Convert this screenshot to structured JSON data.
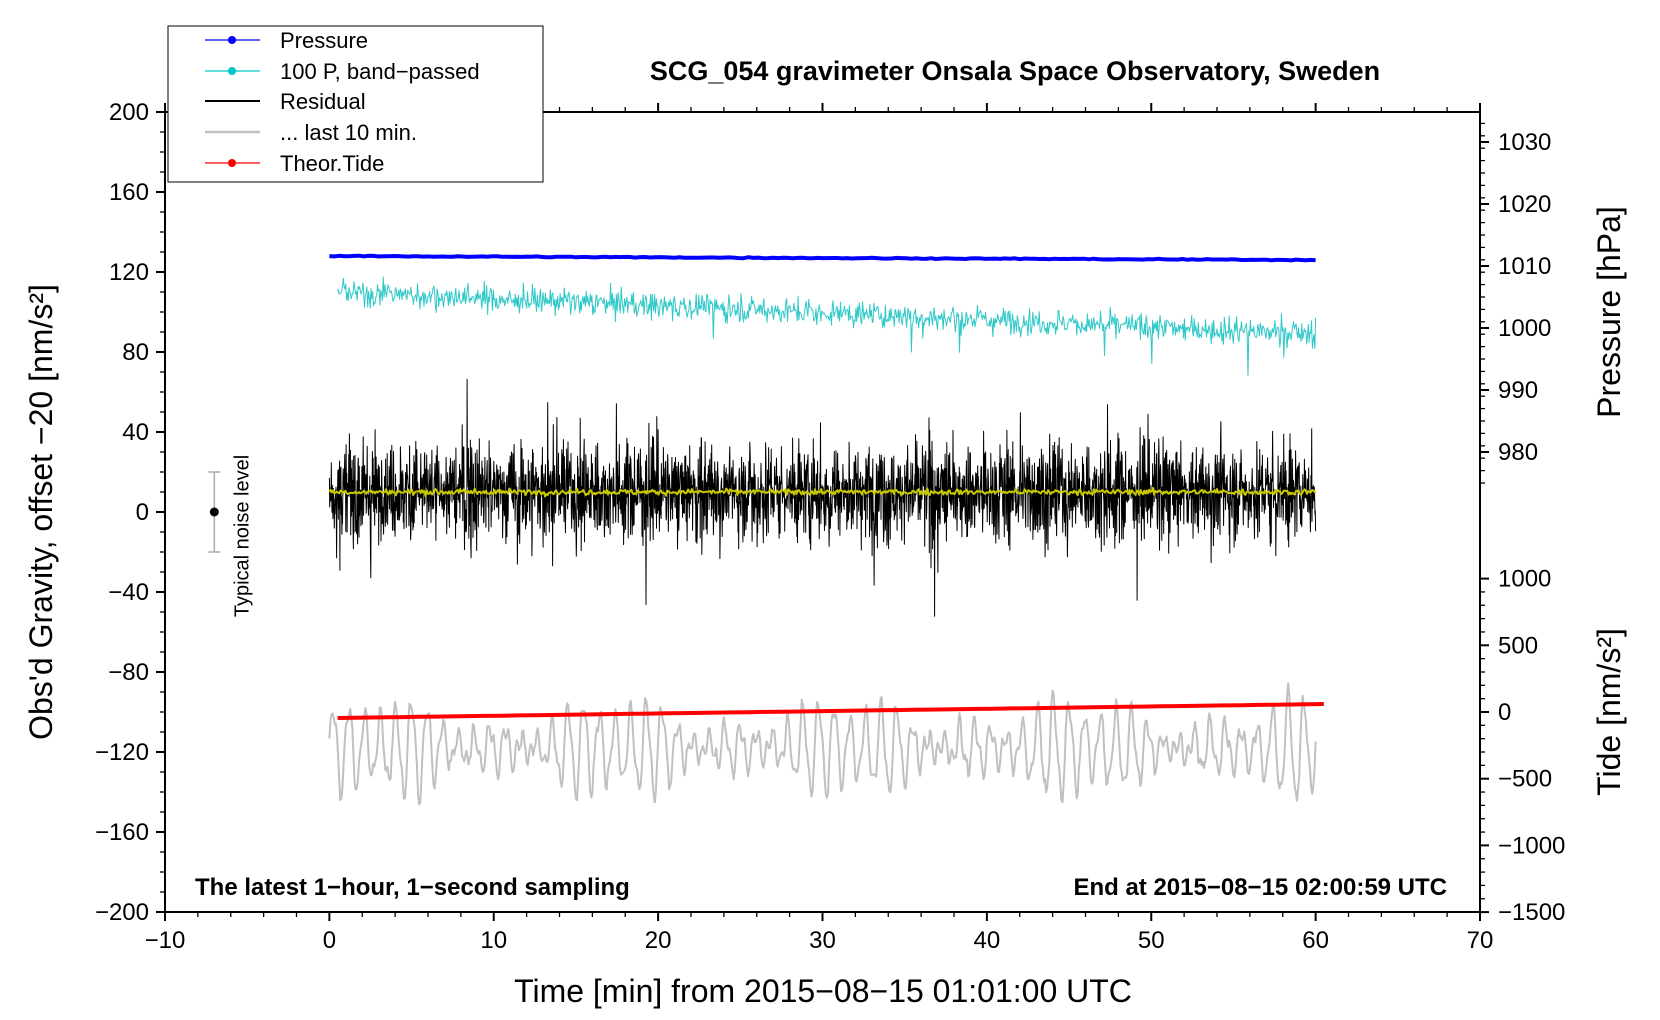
{
  "chart_data": {
    "type": "line",
    "title": "SCG_054 gravimeter Onsala Space Observatory, Sweden",
    "xlabel": "Time [min] from 2015−08−15 01:01:00 UTC",
    "ylabel_left": "Obs'd Gravity, offset −20 [nm/s²]",
    "ylabel_right_top": "Pressure [hPa]",
    "ylabel_right_bottom": "Tide [nm/s²]",
    "xlim": [
      -10,
      70
    ],
    "ylim_left": [
      -200,
      200
    ],
    "x_ticks": [
      -10,
      0,
      10,
      20,
      30,
      40,
      50,
      60,
      70
    ],
    "x_tick_labels": [
      "−10",
      "0",
      "10",
      "20",
      "30",
      "40",
      "50",
      "60",
      "70"
    ],
    "y_ticks_left": [
      200,
      160,
      120,
      80,
      40,
      0,
      -40,
      -80,
      -120,
      -160,
      -200
    ],
    "y_tick_labels_left": [
      "200",
      "160",
      "120",
      "80",
      "40",
      "0",
      "−40",
      "−80",
      "−120",
      "−160",
      "−200"
    ],
    "pressure_axis": {
      "ticks": [
        1030,
        1020,
        1010,
        1000,
        990,
        980
      ],
      "tick_labels": [
        "1030",
        "1020",
        "1010",
        "1000",
        "990",
        "980"
      ],
      "left_equivalent_of_1000": 92,
      "left_units_per_hPa": 3.1
    },
    "tide_axis": {
      "ticks": [
        1000,
        500,
        0,
        -500,
        -1000,
        -1500
      ],
      "tick_labels": [
        "1000",
        "500",
        "0",
        "−500",
        "−1000",
        "−1500"
      ],
      "left_equivalent_of_0": -100,
      "left_units_per_nms2": 0.0667
    },
    "legend": [
      {
        "label": "Pressure",
        "color": "#0000ff",
        "marker": true
      },
      {
        "label": "100 P, band−passed",
        "color": "#00c8c8",
        "marker": true
      },
      {
        "label": "Residual",
        "color": "#000000",
        "marker": false
      },
      {
        "label": "... last 10 min.",
        "color": "#c0c0c0",
        "marker": false
      },
      {
        "label": "Theor.Tide",
        "color": "#ff0000",
        "marker": true
      }
    ],
    "noise_bar": {
      "label": "Typical noise level",
      "x": -7,
      "y_center": 0,
      "y_low": -20,
      "y_high": 20
    },
    "footer_left": "The latest 1−hour, 1−second sampling",
    "footer_right": "End at 2015−08−15 02:00:59 UTC",
    "series": [
      {
        "name": "Pressure",
        "color": "#0000ff",
        "x_start": 0,
        "x_end": 60,
        "y_start": 128,
        "y_end": 126,
        "unit": "left-axis"
      },
      {
        "name": "100 P, band−passed",
        "color": "#30c8c8",
        "x_start": 0.5,
        "x_end": 60,
        "y_start": 110,
        "y_end": 89,
        "amplitude": 6,
        "unit": "left-axis"
      },
      {
        "name": "Residual",
        "color": "#000000",
        "x_start": 0,
        "x_end": 60,
        "y_center": 10,
        "amplitude": 24,
        "unit": "left-axis"
      },
      {
        "name": "Residual smoothed",
        "color": "#c8c800",
        "x_start": 0,
        "x_end": 60,
        "y_center": 10,
        "amplitude": 1.2,
        "unit": "left-axis"
      },
      {
        "name": "... last 10 min.",
        "color": "#c0c0c0",
        "x_start": 0,
        "x_end": 60,
        "y_center": -118,
        "amplitude": 20,
        "unit": "left-axis"
      },
      {
        "name": "Theor.Tide",
        "color": "#ff0000",
        "x_start": 0.5,
        "x_end": 60.5,
        "y_start": -103,
        "y_end": -96,
        "unit": "left-axis"
      }
    ]
  }
}
